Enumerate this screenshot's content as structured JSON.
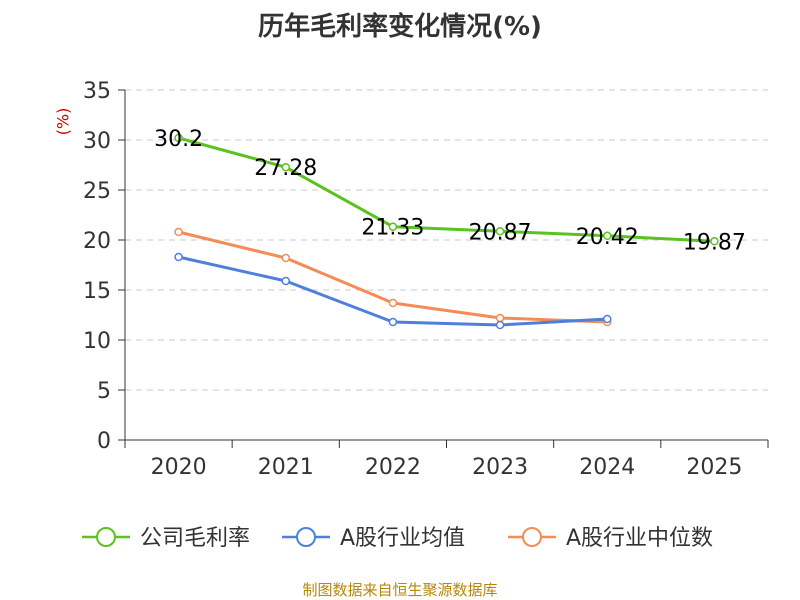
{
  "title": "历年毛利率变化情况(%)",
  "unit_label": "(%)",
  "source": "制图数据来自恒生聚源数据库",
  "colors": {
    "gross_margin": "#5cc21f",
    "industry_avg": "#4e7fdc",
    "industry_median": "#f48c55",
    "grid": "#c8c8c8",
    "axis": "#333333"
  },
  "chart_data": {
    "type": "line",
    "title": "历年毛利率变化情况(%)",
    "categories": [
      "2020",
      "2021",
      "2022",
      "2023",
      "2024",
      "2025"
    ],
    "ylim": [
      0,
      35
    ],
    "yticks": [
      0,
      5,
      10,
      15,
      20,
      25,
      30,
      35
    ],
    "grid": true,
    "legend_position": "bottom",
    "series": [
      {
        "name": "公司毛利率",
        "values": [
          30.2,
          27.28,
          21.33,
          20.87,
          20.42,
          19.87
        ],
        "labels": [
          "30.2",
          "27.28",
          "21.33",
          "20.87",
          "20.42",
          "19.87"
        ],
        "color": "#5cc21f"
      },
      {
        "name": "A股行业均值",
        "values": [
          18.3,
          15.9,
          11.8,
          11.5,
          12.1,
          null
        ],
        "color": "#4e7fdc"
      },
      {
        "name": "A股行业中位数",
        "values": [
          20.8,
          18.2,
          13.7,
          12.2,
          11.8,
          null
        ],
        "color": "#f48c55"
      }
    ]
  }
}
